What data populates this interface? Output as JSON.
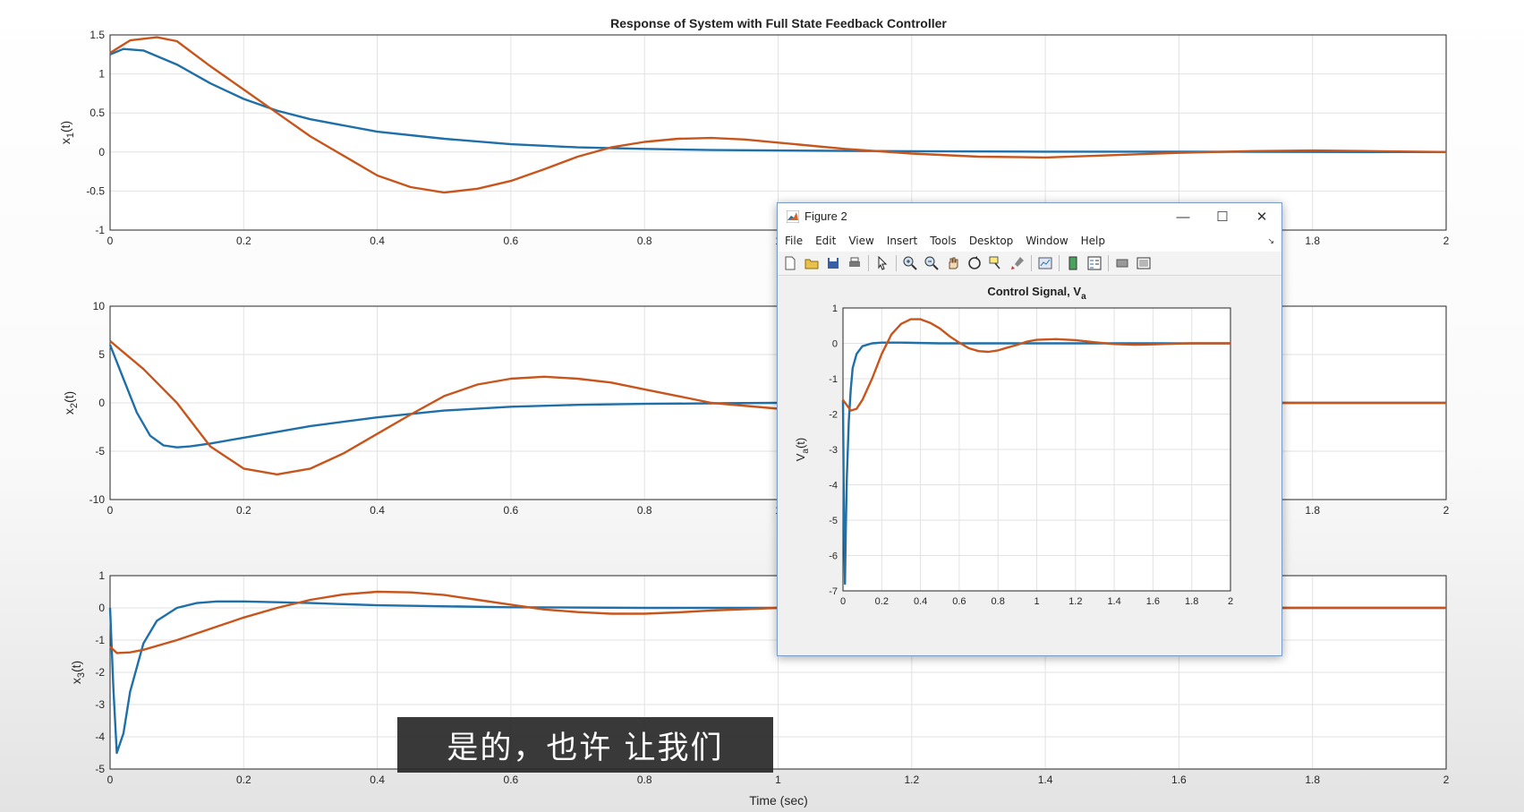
{
  "figure1": {
    "title": "Response of System with Full State Feedback Controller",
    "xlabel": "Time (sec)",
    "colors": {
      "series_a": "#1f6fa8",
      "series_b": "#c8551c",
      "grid": "#e2e2e2",
      "axis": "#262626"
    }
  },
  "chart_data": [
    {
      "type": "line",
      "title": "Response of System with Full State Feedback Controller",
      "ylabel_base": "x",
      "ylabel_sub": "1",
      "ylabel_suffix": "(t)",
      "xlim": [
        0,
        2
      ],
      "ylim": [
        -1,
        1.5
      ],
      "grid": true,
      "xticks": [
        "0",
        "0.2",
        "0.4",
        "0.6",
        "0.8",
        "1",
        "1.2",
        "1.4",
        "1.6",
        "1.8",
        "2"
      ],
      "yticks": [
        "-1",
        "-0.5",
        "0",
        "0.5",
        "1",
        "1.5"
      ],
      "series": [
        {
          "x": [
            0,
            0.02,
            0.05,
            0.1,
            0.15,
            0.2,
            0.25,
            0.3,
            0.4,
            0.5,
            0.6,
            0.7,
            0.8,
            0.9,
            1.0,
            1.2,
            1.4,
            1.6,
            1.8,
            2.0
          ],
          "y": [
            1.25,
            1.32,
            1.3,
            1.12,
            0.88,
            0.68,
            0.53,
            0.42,
            0.26,
            0.17,
            0.1,
            0.06,
            0.04,
            0.025,
            0.02,
            0.01,
            0.005,
            0.003,
            0.001,
            0
          ]
        },
        {
          "x": [
            0,
            0.03,
            0.07,
            0.1,
            0.15,
            0.2,
            0.25,
            0.3,
            0.35,
            0.4,
            0.45,
            0.5,
            0.55,
            0.6,
            0.65,
            0.7,
            0.75,
            0.8,
            0.85,
            0.9,
            0.95,
            1.0,
            1.1,
            1.2,
            1.3,
            1.4,
            1.5,
            1.6,
            1.7,
            1.8,
            1.9,
            2.0
          ],
          "y": [
            1.27,
            1.43,
            1.47,
            1.42,
            1.1,
            0.8,
            0.5,
            0.2,
            -0.05,
            -0.3,
            -0.45,
            -0.52,
            -0.47,
            -0.37,
            -0.22,
            -0.06,
            0.06,
            0.13,
            0.17,
            0.18,
            0.16,
            0.12,
            0.04,
            -0.02,
            -0.06,
            -0.07,
            -0.04,
            -0.01,
            0.01,
            0.02,
            0.01,
            0
          ]
        }
      ]
    },
    {
      "type": "line",
      "ylabel_base": "x",
      "ylabel_sub": "2",
      "ylabel_suffix": "(t)",
      "xlim": [
        0,
        2
      ],
      "ylim": [
        -10,
        10
      ],
      "grid": true,
      "xticks": [
        "0",
        "0.2",
        "0.4",
        "0.6",
        "0.8",
        "1",
        "1.2",
        "1.4",
        "1.6",
        "1.8",
        "2"
      ],
      "yticks": [
        "-10",
        "-5",
        "0",
        "5",
        "10"
      ],
      "series": [
        {
          "x": [
            0,
            0.02,
            0.04,
            0.06,
            0.08,
            0.1,
            0.12,
            0.15,
            0.2,
            0.25,
            0.3,
            0.4,
            0.5,
            0.6,
            0.7,
            0.8,
            0.9,
            1.0,
            1.2,
            1.4,
            1.6,
            1.8,
            2.0
          ],
          "y": [
            6,
            2.5,
            -1,
            -3.4,
            -4.4,
            -4.6,
            -4.5,
            -4.2,
            -3.6,
            -3.0,
            -2.4,
            -1.5,
            -0.8,
            -0.4,
            -0.2,
            -0.1,
            -0.05,
            0,
            0,
            0,
            0,
            0,
            0
          ]
        },
        {
          "x": [
            0,
            0.05,
            0.1,
            0.15,
            0.2,
            0.25,
            0.3,
            0.35,
            0.4,
            0.45,
            0.5,
            0.55,
            0.6,
            0.65,
            0.7,
            0.75,
            0.8,
            0.85,
            0.9,
            1.0,
            1.2,
            1.4,
            1.6,
            1.8,
            2.0
          ],
          "y": [
            6.4,
            3.5,
            0,
            -4.5,
            -6.8,
            -7.4,
            -6.8,
            -5.2,
            -3.2,
            -1.2,
            0.7,
            1.9,
            2.5,
            2.7,
            2.5,
            2.1,
            1.4,
            0.7,
            0,
            -0.6,
            -0.4,
            0,
            0,
            0,
            0
          ]
        }
      ]
    },
    {
      "type": "line",
      "ylabel_base": "x",
      "ylabel_sub": "3",
      "ylabel_suffix": "(t)",
      "xlabel": "Time (sec)",
      "xlim": [
        0,
        2
      ],
      "ylim": [
        -5,
        1
      ],
      "grid": true,
      "xticks": [
        "0",
        "0.2",
        "0.4",
        "0.6",
        "0.8",
        "1",
        "1.2",
        "1.4",
        "1.6",
        "1.8",
        "2"
      ],
      "yticks": [
        "-5",
        "-4",
        "-3",
        "-2",
        "-1",
        "0",
        "1"
      ],
      "series": [
        {
          "x": [
            0,
            0.005,
            0.01,
            0.02,
            0.03,
            0.05,
            0.07,
            0.1,
            0.13,
            0.16,
            0.2,
            0.3,
            0.4,
            0.6,
            0.8,
            1.0,
            1.2,
            1.4,
            1.6,
            1.8,
            2.0
          ],
          "y": [
            0,
            -2.5,
            -4.5,
            -3.9,
            -2.6,
            -1.1,
            -0.4,
            0,
            0.15,
            0.2,
            0.2,
            0.15,
            0.08,
            0.02,
            0,
            0,
            0,
            0,
            0,
            0,
            0
          ]
        },
        {
          "x": [
            0,
            0.01,
            0.03,
            0.05,
            0.1,
            0.15,
            0.2,
            0.25,
            0.3,
            0.35,
            0.4,
            0.45,
            0.5,
            0.55,
            0.6,
            0.65,
            0.7,
            0.75,
            0.8,
            0.85,
            0.9,
            1.0,
            1.2,
            1.4,
            1.6,
            1.8,
            2.0
          ],
          "y": [
            -1.2,
            -1.4,
            -1.38,
            -1.3,
            -1.0,
            -0.65,
            -0.3,
            0,
            0.25,
            0.42,
            0.5,
            0.48,
            0.4,
            0.25,
            0.1,
            -0.05,
            -0.13,
            -0.18,
            -0.18,
            -0.14,
            -0.08,
            0,
            0,
            0,
            0,
            0,
            0
          ]
        }
      ]
    },
    {
      "type": "line",
      "title_base": "Control Signal, V",
      "title_sub": "a",
      "ylabel_base": "V",
      "ylabel_sub": "a",
      "ylabel_suffix": "(t)",
      "xlim": [
        0,
        2
      ],
      "ylim": [
        -7,
        1
      ],
      "grid": true,
      "xticks": [
        "0",
        "0.2",
        "0.4",
        "0.6",
        "0.8",
        "1",
        "1.2",
        "1.4",
        "1.6",
        "1.8",
        "2"
      ],
      "yticks": [
        "-7",
        "-6",
        "-5",
        "-4",
        "-3",
        "-2",
        "-1",
        "0",
        "1"
      ],
      "series": [
        {
          "x": [
            0,
            0.005,
            0.01,
            0.015,
            0.02,
            0.03,
            0.04,
            0.05,
            0.07,
            0.1,
            0.15,
            0.2,
            0.3,
            0.5,
            1.0,
            1.5,
            2.0
          ],
          "y": [
            -1.6,
            -5,
            -6.8,
            -5.2,
            -3.8,
            -2.2,
            -1.3,
            -0.7,
            -0.3,
            -0.08,
            0,
            0.02,
            0.02,
            0,
            0,
            0,
            0
          ]
        },
        {
          "x": [
            0,
            0.02,
            0.04,
            0.07,
            0.1,
            0.15,
            0.2,
            0.25,
            0.3,
            0.35,
            0.4,
            0.45,
            0.5,
            0.55,
            0.6,
            0.65,
            0.7,
            0.75,
            0.8,
            0.85,
            0.9,
            0.95,
            1.0,
            1.1,
            1.2,
            1.3,
            1.4,
            1.5,
            1.6,
            1.7,
            1.8,
            1.9,
            2.0
          ],
          "y": [
            -1.6,
            -1.75,
            -1.9,
            -1.85,
            -1.6,
            -1.0,
            -0.3,
            0.25,
            0.55,
            0.68,
            0.68,
            0.58,
            0.42,
            0.2,
            0.02,
            -0.14,
            -0.22,
            -0.24,
            -0.2,
            -0.12,
            -0.04,
            0.05,
            0.1,
            0.12,
            0.09,
            0.03,
            -0.02,
            -0.04,
            -0.03,
            -0.01,
            0,
            0,
            0
          ]
        }
      ]
    }
  ],
  "figure2": {
    "window_title": "Figure 2",
    "menu": [
      "File",
      "Edit",
      "View",
      "Insert",
      "Tools",
      "Desktop",
      "Window",
      "Help"
    ],
    "toolbar_icons": [
      "new-file-icon",
      "open-folder-icon",
      "save-icon",
      "print-icon",
      "pointer-icon",
      "zoom-in-icon",
      "zoom-out-icon",
      "pan-hand-icon",
      "rotate-3d-icon",
      "data-cursor-icon",
      "brush-icon",
      "link-plot-icon",
      "colorbar-icon",
      "legend-icon",
      "hide-plot-tools-icon",
      "show-plot-tools-icon"
    ],
    "buttons": {
      "minimize": "—",
      "maximize": "☐",
      "close": "✕"
    }
  },
  "subtitle": "是的，也许 让我们"
}
